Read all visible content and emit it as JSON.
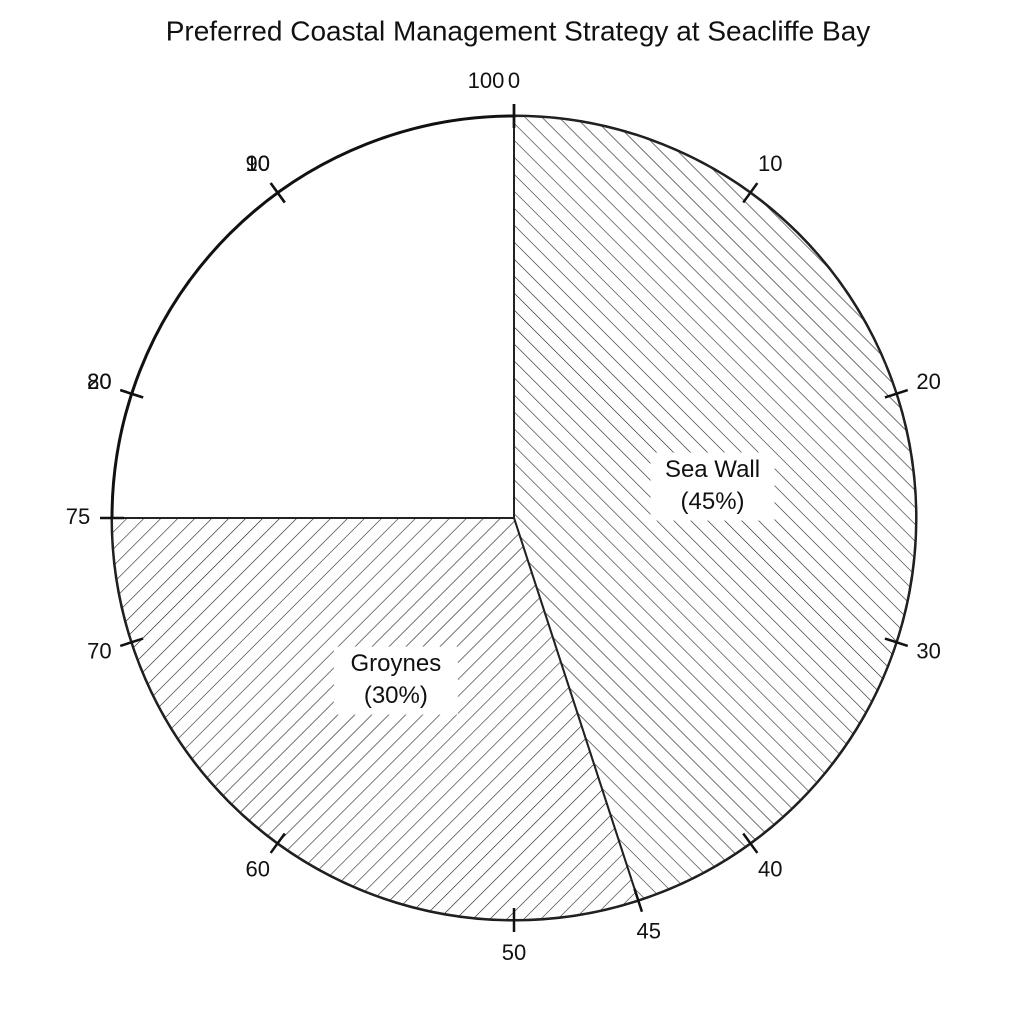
{
  "chart_data": {
    "type": "pie",
    "title": "Preferred Coastal Management Strategy at Seacliffe Bay",
    "categories": [
      "Sea Wall",
      "Groynes"
    ],
    "values": [
      45,
      30
    ],
    "value_labels": [
      "(45%)",
      "(30%)"
    ],
    "hatch": [
      "back",
      "forward"
    ],
    "color": "#222222",
    "ylim": [
      0,
      100
    ],
    "yticks": [
      0,
      10,
      20,
      30,
      40,
      45,
      50,
      60,
      70,
      75,
      80,
      90,
      100
    ],
    "ccw_ticks": [
      10,
      20
    ]
  }
}
